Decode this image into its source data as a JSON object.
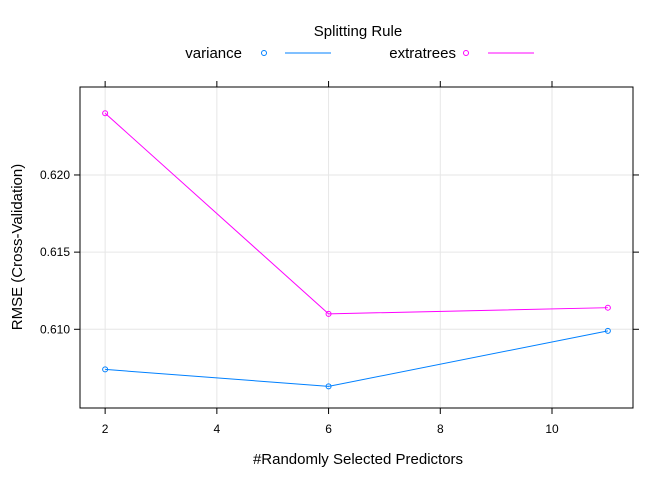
{
  "chart_data": {
    "type": "line",
    "title": "",
    "xlabel": "#Randomly Selected Predictors",
    "ylabel": "RMSE (Cross-Validation)",
    "xlim": [
      1.55,
      11.45
    ],
    "ylim": [
      0.6049,
      0.6257
    ],
    "x_ticks": [
      2,
      4,
      6,
      8,
      10
    ],
    "y_ticks": [
      0.61,
      0.615,
      0.62
    ],
    "y_tick_labels": [
      "0.610",
      "0.615",
      "0.620"
    ],
    "grid": true,
    "legend": {
      "title": "Splitting Rule",
      "placement": "top"
    },
    "series": [
      {
        "name": "variance",
        "color": "#0080FF",
        "x": [
          2,
          6,
          11
        ],
        "y": [
          0.6074,
          0.6063,
          0.6099
        ]
      },
      {
        "name": "extratrees",
        "color": "#FF00FF",
        "x": [
          2,
          6,
          11
        ],
        "y": [
          0.624,
          0.611,
          0.6114
        ]
      }
    ]
  }
}
